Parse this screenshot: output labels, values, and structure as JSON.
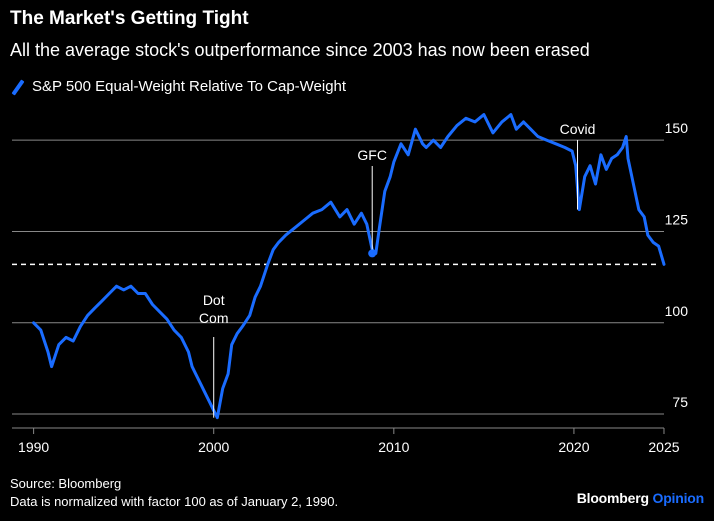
{
  "header": {
    "title": "The Market's Getting Tight",
    "subtitle": "All the average stock's outperformance since 2003 has now been erased"
  },
  "footer": {
    "source": "Source: Bloomberg",
    "note": "Data is normalized with factor 100 as of January 2, 1990.",
    "brand_main": "Bloomberg",
    "brand_accent": "Opinion"
  },
  "colors": {
    "line": "#1a6cff",
    "grid": "#888888",
    "background": "#000000",
    "text": "#ffffff",
    "annotation_line": "#ffffff"
  },
  "chart_data": {
    "type": "line",
    "title": "The Market's Getting Tight",
    "subtitle": "All the average stock's outperformance since 2003 has now been erased",
    "xlabel": "",
    "ylabel": "",
    "xlim": [
      1988.8,
      2027.0
    ],
    "ylim": [
      72,
      161
    ],
    "x_ticks": [
      1990,
      2000,
      2010,
      2020,
      2025
    ],
    "y_ticks": [
      75,
      100,
      125,
      150
    ],
    "grid": "horizontal",
    "legend_position": "top-left",
    "series": [
      {
        "name": "S&P 500 Equal-Weight Relative To Cap-Weight",
        "x": [
          1990.0,
          1990.4,
          1990.8,
          1991.0,
          1991.4,
          1991.8,
          1992.2,
          1992.6,
          1993.0,
          1993.4,
          1993.8,
          1994.2,
          1994.6,
          1995.0,
          1995.4,
          1995.8,
          1996.2,
          1996.6,
          1997.0,
          1997.4,
          1997.8,
          1998.2,
          1998.6,
          1998.8,
          1999.0,
          1999.3,
          1999.6,
          1999.8,
          2000.0,
          2000.2,
          2000.5,
          2000.8,
          2001.0,
          2001.3,
          2001.6,
          2002.0,
          2002.3,
          2002.6,
          2003.0,
          2003.3,
          2003.6,
          2004.0,
          2004.5,
          2005.0,
          2005.5,
          2006.0,
          2006.5,
          2007.0,
          2007.4,
          2007.8,
          2008.2,
          2008.5,
          2008.8,
          2009.0,
          2009.2,
          2009.5,
          2009.8,
          2010.0,
          2010.4,
          2010.8,
          2011.2,
          2011.6,
          2011.8,
          2012.2,
          2012.6,
          2013.0,
          2013.5,
          2014.0,
          2014.5,
          2015.0,
          2015.5,
          2016.0,
          2016.5,
          2016.8,
          2017.2,
          2017.6,
          2018.0,
          2018.5,
          2019.0,
          2019.5,
          2019.9,
          2020.1,
          2020.2,
          2020.3,
          2020.6,
          2020.9,
          2021.2,
          2021.5,
          2021.8,
          2022.1,
          2022.4,
          2022.7,
          2022.9,
          2023.0,
          2023.3,
          2023.6,
          2023.9,
          2024.1,
          2024.4,
          2024.7,
          2025.0
        ],
        "values": [
          100,
          98,
          92,
          88,
          94,
          96,
          95,
          99,
          102,
          104,
          106,
          108,
          110,
          109,
          110,
          108,
          108,
          105,
          103,
          101,
          98,
          96,
          92,
          88,
          86,
          83,
          80,
          78,
          76,
          74,
          82,
          86,
          94,
          97,
          99,
          102,
          107,
          110,
          116,
          120,
          122,
          124,
          126,
          128,
          130,
          131,
          133,
          129,
          131,
          127,
          130,
          127,
          120,
          119,
          126,
          136,
          140,
          144,
          149,
          146,
          153,
          149,
          148,
          150,
          148,
          151,
          154,
          156,
          155,
          157,
          152,
          155,
          157,
          153,
          155,
          153,
          151,
          150,
          149,
          148,
          147,
          143,
          137,
          131,
          140,
          143,
          138,
          146,
          142,
          145,
          146,
          148,
          151,
          145,
          138,
          131,
          129,
          124,
          122,
          121,
          116
        ]
      }
    ],
    "annotations": [
      {
        "label": "Dot Com",
        "x": 2000.0,
        "y": 74
      },
      {
        "label": "GFC",
        "x": 2008.8,
        "y": 119
      },
      {
        "label": "Covid",
        "x": 2020.2,
        "y": 131
      }
    ],
    "reference_line": {
      "y": 116,
      "style": "dashed"
    }
  }
}
